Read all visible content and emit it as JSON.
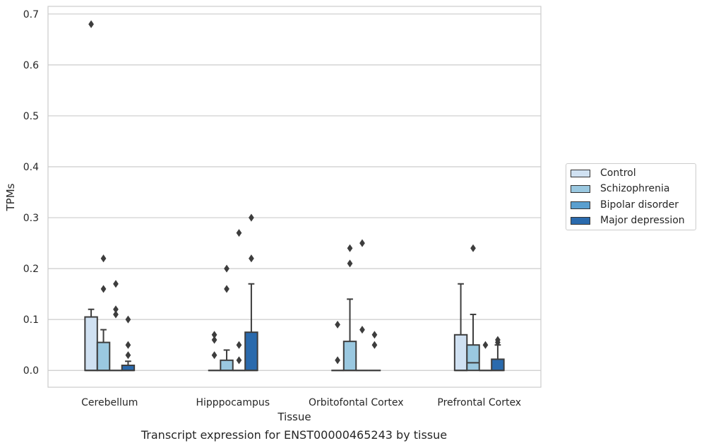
{
  "caption": "Transcript expression for ENST00000465243 by tissue",
  "chart_data": {
    "type": "box",
    "title": "",
    "xlabel": "Tissue",
    "ylabel": "TPMs",
    "ylim": [
      -0.033,
      0.715
    ],
    "yticks": [
      "0.0",
      "0.1",
      "0.2",
      "0.3",
      "0.4",
      "0.5",
      "0.6",
      "0.7"
    ],
    "ytick_values": [
      0,
      0.1,
      0.2,
      0.3,
      0.4,
      0.5,
      0.6,
      0.7
    ],
    "grid": true,
    "legend_position": "right",
    "categories": [
      "Cerebellum",
      "Hipppocampus",
      "Orbitofontal Cortex",
      "Prefrontal Cortex"
    ],
    "series": [
      {
        "name": "Control",
        "color": "#d0e1f2",
        "boxes": [
          {
            "q1": 0.0,
            "median": 0.0,
            "q3": 0.105,
            "whisker_low": 0.0,
            "whisker_high": 0.12,
            "outliers": [
              0.68
            ]
          },
          {
            "q1": 0.0,
            "median": 0.0,
            "q3": 0.0,
            "whisker_low": 0.0,
            "whisker_high": 0.0,
            "outliers": [
              0.03,
              0.06,
              0.07
            ]
          },
          {
            "q1": 0.0,
            "median": 0.0,
            "q3": 0.0,
            "whisker_low": 0.0,
            "whisker_high": 0.0,
            "outliers": [
              0.02,
              0.09
            ]
          },
          {
            "q1": 0.0,
            "median": 0.0,
            "q3": 0.07,
            "whisker_low": 0.0,
            "whisker_high": 0.17,
            "outliers": []
          }
        ]
      },
      {
        "name": "Schizophrenia",
        "color": "#9ac8e0",
        "boxes": [
          {
            "q1": 0.0,
            "median": 0.0,
            "q3": 0.055,
            "whisker_low": 0.0,
            "whisker_high": 0.08,
            "outliers": [
              0.16,
              0.22
            ]
          },
          {
            "q1": 0.0,
            "median": 0.0,
            "q3": 0.02,
            "whisker_low": 0.0,
            "whisker_high": 0.04,
            "outliers": [
              0.16,
              0.2
            ]
          },
          {
            "q1": 0.0,
            "median": 0.0,
            "q3": 0.057,
            "whisker_low": 0.0,
            "whisker_high": 0.14,
            "outliers": [
              0.21,
              0.24
            ]
          },
          {
            "q1": 0.0,
            "median": 0.015,
            "q3": 0.05,
            "whisker_low": 0.0,
            "whisker_high": 0.11,
            "outliers": [
              0.24
            ]
          }
        ]
      },
      {
        "name": "Bipolar disorder",
        "color": "#5a9fcf",
        "boxes": [
          {
            "q1": 0.0,
            "median": 0.0,
            "q3": 0.0,
            "whisker_low": 0.0,
            "whisker_high": 0.0,
            "outliers": [
              0.11,
              0.12,
              0.17
            ]
          },
          {
            "q1": 0.0,
            "median": 0.0,
            "q3": 0.0,
            "whisker_low": 0.0,
            "whisker_high": 0.0,
            "outliers": [
              0.02,
              0.05,
              0.27
            ]
          },
          {
            "q1": 0.0,
            "median": 0.0,
            "q3": 0.0,
            "whisker_low": 0.0,
            "whisker_high": 0.0,
            "outliers": [
              0.08,
              0.25
            ]
          },
          {
            "q1": 0.0,
            "median": 0.0,
            "q3": 0.0,
            "whisker_low": 0.0,
            "whisker_high": 0.0,
            "outliers": [
              0.05
            ]
          }
        ]
      },
      {
        "name": "Major depression",
        "color": "#2a6aad",
        "boxes": [
          {
            "q1": 0.0,
            "median": 0.0,
            "q3": 0.01,
            "whisker_low": 0.0,
            "whisker_high": 0.018,
            "outliers": [
              0.03,
              0.05,
              0.1
            ]
          },
          {
            "q1": 0.0,
            "median": 0.0,
            "q3": 0.075,
            "whisker_low": 0.0,
            "whisker_high": 0.17,
            "outliers": [
              0.22,
              0.3
            ]
          },
          {
            "q1": 0.0,
            "median": 0.0,
            "q3": 0.0,
            "whisker_low": 0.0,
            "whisker_high": 0.0,
            "outliers": [
              0.05,
              0.07
            ]
          },
          {
            "q1": 0.0,
            "median": 0.0,
            "q3": 0.022,
            "whisker_low": 0.0,
            "whisker_high": 0.05,
            "outliers": [
              0.055,
              0.06
            ]
          }
        ]
      }
    ]
  }
}
